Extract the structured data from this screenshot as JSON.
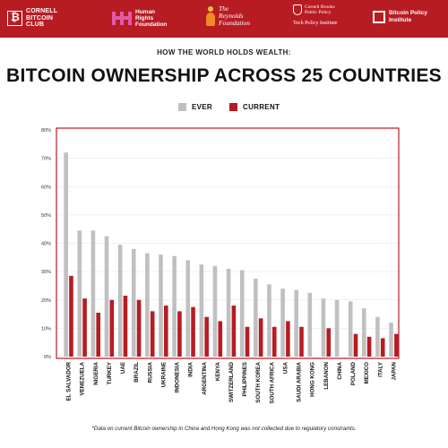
{
  "header": {
    "orgs": [
      {
        "name": "CORNELL\nBITCOIN\nCLUB",
        "icon": "bitcoin-square-icon"
      },
      {
        "name": "Human\nRights\nFoundation",
        "icon": "hrf-h-icon"
      },
      {
        "name": "The\nReynolds\nFoundation",
        "icon": "reynolds-flame-icon"
      },
      {
        "name": "Cornell Brooks\nPublic Policy",
        "tagline": "Tech Policy Institute",
        "icon": "cornell-shield-icon"
      },
      {
        "name": "Bitcoin Policy\nInstitute",
        "icon": "bpi-square-icon"
      }
    ],
    "background": "#b71c23"
  },
  "kicker": "HOW THE WORLD HOLDS WEALTH:",
  "title": "BITCOIN OWNERSHIP ACROSS 25 COUNTRIES",
  "footnote": "*Data on current Bitcoin ownership in China and Hong Kong was not collected due to regulatory constraints.",
  "chart_data": {
    "type": "bar",
    "categories": [
      "EL SALVADOR",
      "VENEZUELA",
      "NIGERIA",
      "TURKEY",
      "UAE",
      "BRAZIL",
      "RUSSIA",
      "UKRAINE",
      "INDONESIA",
      "INDIA",
      "ARGENTINA",
      "KENYA",
      "SWITZERLAND",
      "PHILIPPINES",
      "SOUTH KOREA",
      "SOUTH AFRICA",
      "USA",
      "SAUDI ARABIA",
      "HONG KONG",
      "LEBANON",
      "CHINA",
      "POLAND",
      "MEXICO",
      "ITALY",
      "JAPAN"
    ],
    "series": [
      {
        "name": "EVER",
        "color": "#c0c0c0",
        "values": [
          72,
          44.5,
          44.5,
          42.5,
          39.5,
          38,
          36.5,
          36,
          35.5,
          34,
          32.5,
          32,
          31,
          30.5,
          27.5,
          25.5,
          24,
          23.5,
          22.5,
          20.5,
          20,
          19.5,
          17,
          14,
          12
        ]
      },
      {
        "name": "CURRENT",
        "color": "#b71c23",
        "values": [
          28.5,
          20.5,
          15.5,
          20,
          21.5,
          20,
          16,
          18,
          16,
          17.5,
          14,
          12.5,
          18,
          10.5,
          13.5,
          10.5,
          12.5,
          10.5,
          null,
          10,
          null,
          8,
          7,
          6.5,
          8
        ]
      }
    ],
    "yticks": [
      "0%",
      "10%",
      "20%",
      "30%",
      "40%",
      "50%",
      "60%",
      "70%",
      "80%"
    ],
    "ylim": [
      0,
      80
    ],
    "ylabel": "",
    "xlabel": "",
    "grid": true,
    "legend": "top-center"
  }
}
